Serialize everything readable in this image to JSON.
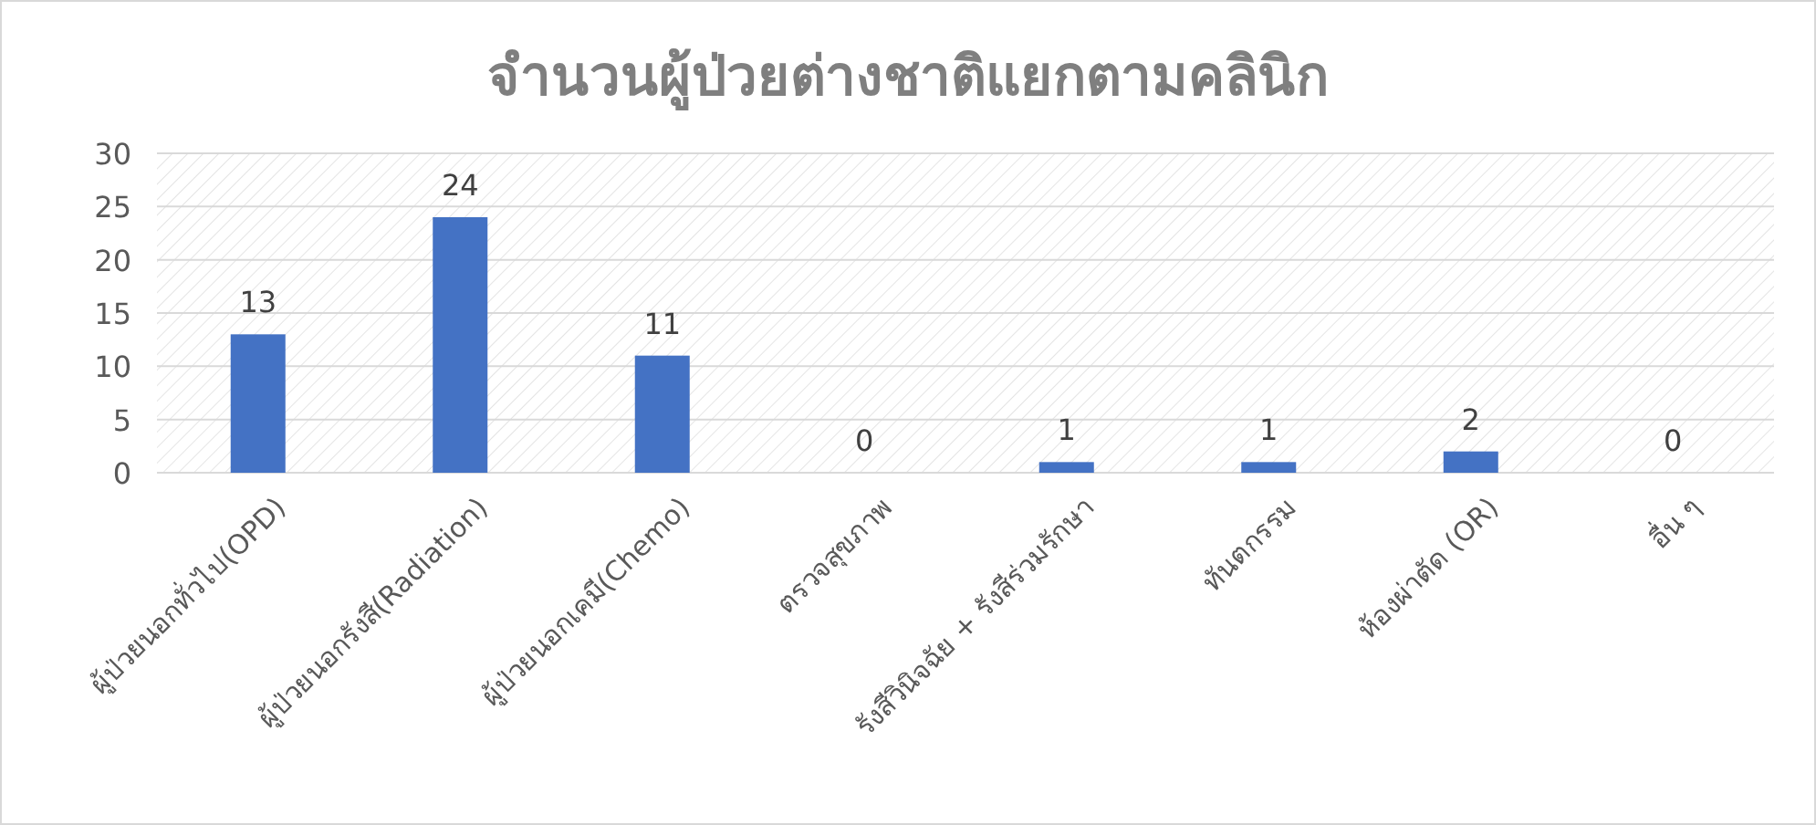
{
  "chart_data": {
    "type": "bar",
    "title": "จำนวนผู้ป่วยต่างชาติแยกตามคลินิก",
    "categories": [
      "ผู้ป่วยนอกทั่วไป(OPD)",
      "ผู้ป่วยนอกรังสี(Radiation)",
      "ผู้ป่วยนอกเคมี(Chemo)",
      "ตรวจสุขภาพ",
      "รังสีวินิจฉัย + รังสีร่วมรักษา",
      "ทันตกรรม",
      "ห้องผ่าตัด (OR)",
      "อื่น ๆ"
    ],
    "values": [
      13,
      24,
      11,
      0,
      1,
      1,
      2,
      0
    ],
    "color": "#4472c4",
    "ylim": [
      0,
      30
    ],
    "yticks": [
      0,
      5,
      10,
      15,
      20,
      25,
      30
    ],
    "grid": "y",
    "data_labels": true
  }
}
